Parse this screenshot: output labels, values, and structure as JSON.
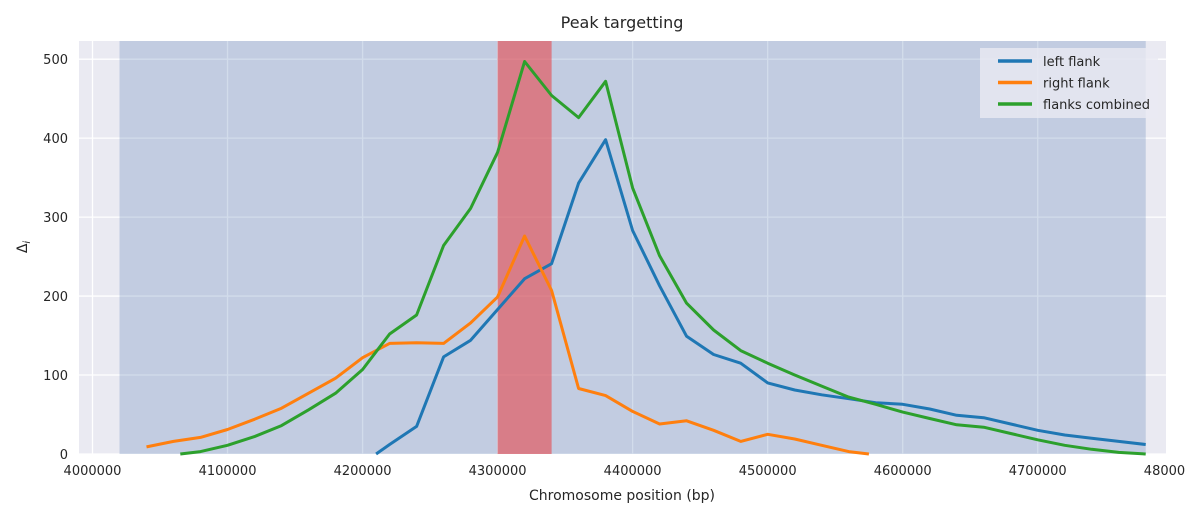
{
  "chart_data": {
    "type": "line",
    "title": "Peak targetting",
    "xlabel": "Chromosome position (bp)",
    "ylabel": "Δ",
    "ylabel_sub": "i",
    "xlim": [
      3990000,
      4795000
    ],
    "ylim": [
      0,
      523
    ],
    "x_ticks": [
      4000000,
      4100000,
      4200000,
      4300000,
      4400000,
      4500000,
      4600000,
      4700000,
      4800000
    ],
    "y_ticks": [
      0,
      100,
      200,
      300,
      400,
      500
    ],
    "grid": true,
    "legend_position": "top-right",
    "shaded_regions": [
      {
        "x0": 4020000,
        "x1": 4780000,
        "color": "#4c72b0",
        "opacity": 0.25
      },
      {
        "x0": 4300000,
        "x1": 4340000,
        "color": "#e6484d",
        "opacity": 0.6
      }
    ],
    "series": [
      {
        "name": "left flank",
        "color": "#1f77b4",
        "points": [
          [
            4210000,
            0
          ],
          [
            4220000,
            12
          ],
          [
            4240000,
            35
          ],
          [
            4260000,
            123
          ],
          [
            4280000,
            144
          ],
          [
            4300000,
            183
          ],
          [
            4320000,
            222
          ],
          [
            4340000,
            241
          ],
          [
            4360000,
            343
          ],
          [
            4380000,
            398
          ],
          [
            4400000,
            283
          ],
          [
            4420000,
            213
          ],
          [
            4440000,
            149
          ],
          [
            4460000,
            126
          ],
          [
            4480000,
            115
          ],
          [
            4500000,
            90
          ],
          [
            4520000,
            81
          ],
          [
            4540000,
            75
          ],
          [
            4560000,
            70
          ],
          [
            4580000,
            65
          ],
          [
            4600000,
            63
          ],
          [
            4620000,
            57
          ],
          [
            4640000,
            49
          ],
          [
            4660000,
            46
          ],
          [
            4680000,
            38
          ],
          [
            4700000,
            30
          ],
          [
            4720000,
            24
          ],
          [
            4740000,
            20
          ],
          [
            4760000,
            16
          ],
          [
            4780000,
            12
          ]
        ]
      },
      {
        "name": "right flank",
        "color": "#ff7f0e",
        "points": [
          [
            4040000,
            9
          ],
          [
            4060000,
            16
          ],
          [
            4080000,
            21
          ],
          [
            4100000,
            31
          ],
          [
            4120000,
            44
          ],
          [
            4140000,
            58
          ],
          [
            4160000,
            77
          ],
          [
            4180000,
            96
          ],
          [
            4200000,
            122
          ],
          [
            4220000,
            140
          ],
          [
            4240000,
            141
          ],
          [
            4260000,
            140
          ],
          [
            4280000,
            166
          ],
          [
            4300000,
            199
          ],
          [
            4320000,
            276
          ],
          [
            4340000,
            207
          ],
          [
            4360000,
            83
          ],
          [
            4380000,
            74
          ],
          [
            4400000,
            54
          ],
          [
            4420000,
            38
          ],
          [
            4440000,
            42
          ],
          [
            4460000,
            30
          ],
          [
            4480000,
            16
          ],
          [
            4500000,
            25
          ],
          [
            4520000,
            19
          ],
          [
            4540000,
            11
          ],
          [
            4560000,
            3
          ],
          [
            4575000,
            0
          ]
        ]
      },
      {
        "name": "flanks combined",
        "color": "#2ca02c",
        "points": [
          [
            4065000,
            0
          ],
          [
            4080000,
            3
          ],
          [
            4100000,
            11
          ],
          [
            4120000,
            22
          ],
          [
            4140000,
            36
          ],
          [
            4160000,
            56
          ],
          [
            4180000,
            77
          ],
          [
            4200000,
            107
          ],
          [
            4220000,
            152
          ],
          [
            4240000,
            176
          ],
          [
            4260000,
            264
          ],
          [
            4280000,
            311
          ],
          [
            4300000,
            382
          ],
          [
            4320000,
            497
          ],
          [
            4340000,
            454
          ],
          [
            4360000,
            426
          ],
          [
            4380000,
            472
          ],
          [
            4400000,
            337
          ],
          [
            4420000,
            251
          ],
          [
            4440000,
            191
          ],
          [
            4460000,
            157
          ],
          [
            4480000,
            131
          ],
          [
            4500000,
            115
          ],
          [
            4520000,
            100
          ],
          [
            4540000,
            86
          ],
          [
            4560000,
            72
          ],
          [
            4580000,
            63
          ],
          [
            4600000,
            53
          ],
          [
            4620000,
            45
          ],
          [
            4640000,
            37
          ],
          [
            4660000,
            34
          ],
          [
            4680000,
            26
          ],
          [
            4700000,
            18
          ],
          [
            4720000,
            11
          ],
          [
            4740000,
            6
          ],
          [
            4760000,
            2
          ],
          [
            4780000,
            0
          ]
        ]
      }
    ]
  }
}
